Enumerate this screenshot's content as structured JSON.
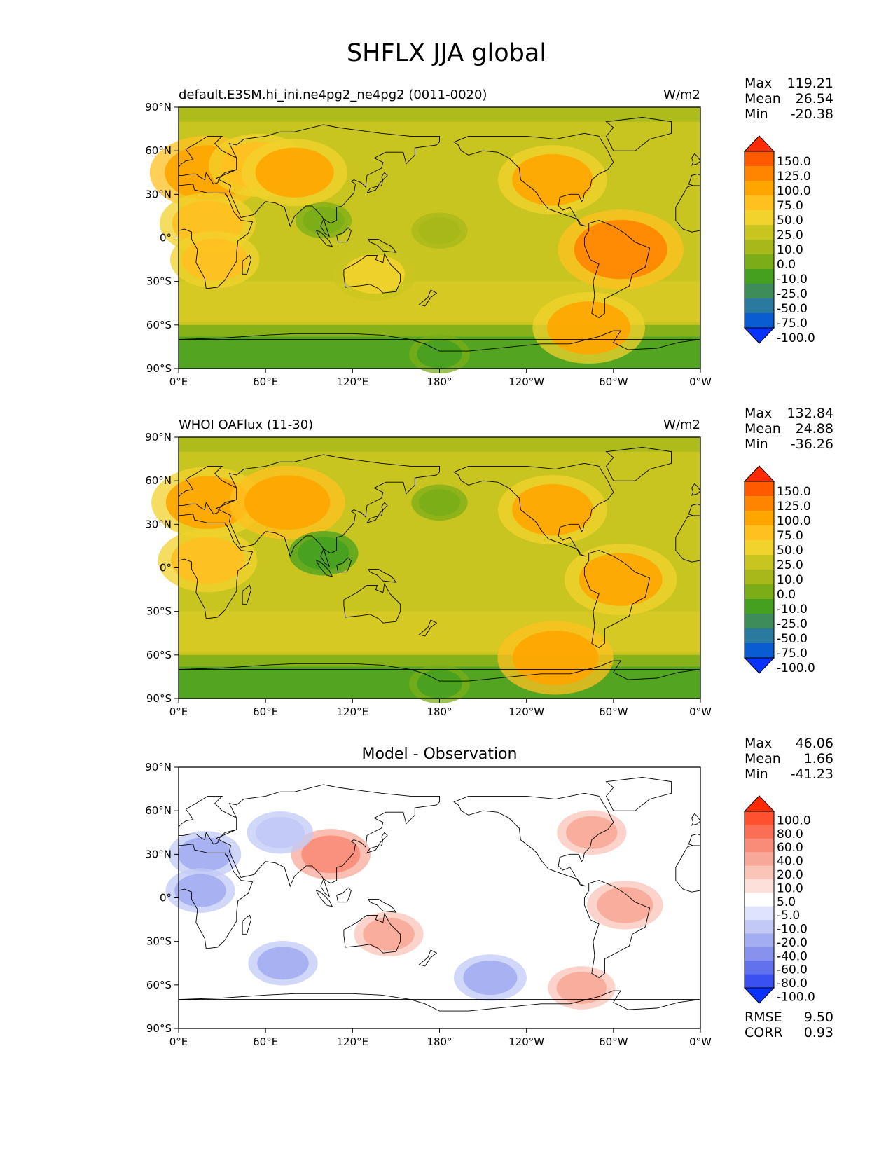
{
  "title": "SHFLX JJA global",
  "colors": {
    "land_outline": "#000000",
    "ocean_base": "#c9c520"
  },
  "panels": [
    {
      "title_left": "default.E3SM.hi_ini.ne4pg2_ne4pg2 (0011-0020)",
      "title_center": "",
      "units": "W/m2",
      "stats": [
        {
          "label": "Max",
          "value": "119.21"
        },
        {
          "label": "Mean",
          "value": "26.54"
        },
        {
          "label": "Min",
          "value": "-20.38"
        }
      ],
      "colorbar": {
        "levels": [
          "150.0",
          "125.0",
          "100.0",
          "75.0",
          "50.0",
          "25.0",
          "10.0",
          "0.0",
          "-10.0",
          "-25.0",
          "-50.0",
          "-75.0",
          "-100.0"
        ],
        "colors": [
          "#ff2a00",
          "#ff5a00",
          "#ff8500",
          "#ffa500",
          "#ffc020",
          "#f2d22c",
          "#c9c520",
          "#a6b81a",
          "#7aad18",
          "#46a020",
          "#3d8c5a",
          "#2a7aa0",
          "#0a5cd2",
          "#0a32ff"
        ]
      }
    },
    {
      "title_left": "WHOI OAFlux (11-30)",
      "title_center": "",
      "units": "W/m2",
      "stats": [
        {
          "label": "Max",
          "value": "132.84"
        },
        {
          "label": "Mean",
          "value": "24.88"
        },
        {
          "label": "Min",
          "value": "-36.26"
        }
      ],
      "colorbar": {
        "levels": [
          "150.0",
          "125.0",
          "100.0",
          "75.0",
          "50.0",
          "25.0",
          "10.0",
          "0.0",
          "-10.0",
          "-25.0",
          "-50.0",
          "-75.0",
          "-100.0"
        ],
        "colors": [
          "#ff2a00",
          "#ff5a00",
          "#ff8500",
          "#ffa500",
          "#ffc020",
          "#f2d22c",
          "#c9c520",
          "#a6b81a",
          "#7aad18",
          "#46a020",
          "#3d8c5a",
          "#2a7aa0",
          "#0a5cd2",
          "#0a32ff"
        ]
      }
    },
    {
      "title_left": "",
      "title_center": "Model - Observation",
      "units": "",
      "stats": [
        {
          "label": "Max",
          "value": "46.06"
        },
        {
          "label": "Mean",
          "value": "1.66"
        },
        {
          "label": "Min",
          "value": "-41.23"
        }
      ],
      "extra_stats": [
        {
          "label": "RMSE",
          "value": "9.50"
        },
        {
          "label": "CORR",
          "value": "0.93"
        }
      ],
      "colorbar": {
        "levels": [
          "100.0",
          "80.0",
          "60.0",
          "40.0",
          "20.0",
          "10.0",
          "5.0",
          "-5.0",
          "-10.0",
          "-20.0",
          "-40.0",
          "-60.0",
          "-80.0",
          "-100.0"
        ],
        "colors": [
          "#ff2a00",
          "#ff5030",
          "#fa6e55",
          "#f88c78",
          "#f8a898",
          "#fac4b8",
          "#fde0da",
          "#ffffff",
          "#dfe3fb",
          "#c2c9f6",
          "#a3aef2",
          "#8692ee",
          "#6272ec",
          "#3a50f0",
          "#0a32ff"
        ]
      }
    }
  ],
  "chart_data": {
    "type": "heatmap",
    "title": "SHFLX JJA global",
    "x_ticks": [
      "0°E",
      "60°E",
      "120°E",
      "180°",
      "120°W",
      "60°W",
      "0°W"
    ],
    "y_ticks": [
      "90°N",
      "60°N",
      "30°N",
      "0°",
      "30°S",
      "60°S",
      "90°S"
    ],
    "xlim": [
      0,
      360
    ],
    "ylim": [
      -90,
      90
    ],
    "panels": [
      {
        "title": "default.E3SM.hi_ini.ne4pg2_ne4pg2 (0011-0020)",
        "units": "W/m2",
        "max": 119.21,
        "mean": 26.54,
        "min": -20.38,
        "features": [
          {
            "lon": 20,
            "lat": 45,
            "value": 95
          },
          {
            "lon": 55,
            "lat": 50,
            "value": 70
          },
          {
            "lon": 80,
            "lat": 45,
            "value": 80
          },
          {
            "lon": 20,
            "lat": 10,
            "value": 65
          },
          {
            "lon": 25,
            "lat": -15,
            "value": 55
          },
          {
            "lon": 135,
            "lat": -25,
            "value": 45
          },
          {
            "lon": 258,
            "lat": 40,
            "value": 85
          },
          {
            "lon": 305,
            "lat": -8,
            "value": 110
          },
          {
            "lon": 283,
            "lat": -62,
            "value": 90
          },
          {
            "lon": 100,
            "lat": 12,
            "value": -5
          },
          {
            "lon": 180,
            "lat": 5,
            "value": 5
          },
          {
            "lon": 180,
            "lat": -80,
            "value": -12
          }
        ]
      },
      {
        "title": "WHOI OAFlux (11-30)",
        "units": "W/m2",
        "max": 132.84,
        "mean": 24.88,
        "min": -36.26,
        "features": [
          {
            "lon": 20,
            "lat": 45,
            "value": 90
          },
          {
            "lon": 75,
            "lat": 45,
            "value": 95
          },
          {
            "lon": 20,
            "lat": 5,
            "value": 70
          },
          {
            "lon": 100,
            "lat": 10,
            "value": -25
          },
          {
            "lon": 258,
            "lat": 40,
            "value": 85
          },
          {
            "lon": 305,
            "lat": -8,
            "value": 90
          },
          {
            "lon": 260,
            "lat": -62,
            "value": 95
          },
          {
            "lon": 180,
            "lat": 45,
            "value": -5
          },
          {
            "lon": 180,
            "lat": -80,
            "value": -12
          }
        ]
      },
      {
        "title": "Model - Observation",
        "max": 46.06,
        "mean": 1.66,
        "min": -41.23,
        "rmse": 9.5,
        "corr": 0.93,
        "features": [
          {
            "lon": 105,
            "lat": 30,
            "value": 40
          },
          {
            "lon": 70,
            "lat": 45,
            "value": -20
          },
          {
            "lon": 18,
            "lat": 30,
            "value": -30
          },
          {
            "lon": 15,
            "lat": 5,
            "value": -25
          },
          {
            "lon": 285,
            "lat": 45,
            "value": 25
          },
          {
            "lon": 308,
            "lat": -5,
            "value": 35
          },
          {
            "lon": 145,
            "lat": -25,
            "value": 25
          },
          {
            "lon": 72,
            "lat": -45,
            "value": -25
          },
          {
            "lon": 215,
            "lat": -55,
            "value": -30
          },
          {
            "lon": 278,
            "lat": -62,
            "value": 22
          }
        ]
      }
    ]
  }
}
